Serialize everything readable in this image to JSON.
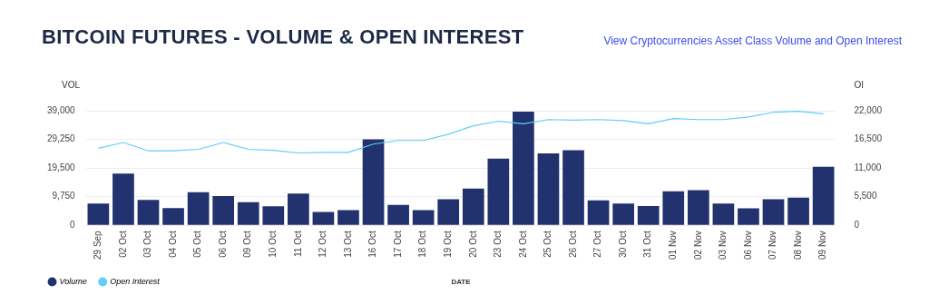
{
  "chart_data": {
    "type": "bar",
    "title": "BITCOIN FUTURES - VOLUME & OPEN INTEREST",
    "xlabel": "DATE",
    "ylabel": "VOL",
    "y2label": "OI",
    "annotations": [
      "View Cryptocurrencies Asset Class Volume and Open Interest"
    ],
    "categories": [
      "29 Sep",
      "02 Oct",
      "03 Oct",
      "04 Oct",
      "05 Oct",
      "06 Oct",
      "09 Oct",
      "10 Oct",
      "11 Oct",
      "12 Oct",
      "13 Oct",
      "16 Oct",
      "17 Oct",
      "18 Oct",
      "19 Oct",
      "20 Oct",
      "23 Oct",
      "24 Oct",
      "25 Oct",
      "26 Oct",
      "27 Oct",
      "30 Oct",
      "31 Oct",
      "01 Nov",
      "02 Nov",
      "03 Nov",
      "06 Nov",
      "07 Nov",
      "08 Nov",
      "09 Nov"
    ],
    "series": [
      {
        "name": "Volume",
        "color": "#22326e",
        "values": [
          7400,
          17600,
          8700,
          5900,
          11300,
          10000,
          7900,
          6500,
          10800,
          4600,
          5200,
          29300,
          7000,
          5200,
          8900,
          12500,
          22700,
          38700,
          24500,
          25600,
          8500,
          7400,
          6600,
          11600,
          12000,
          7400,
          5800,
          8900,
          9400,
          19900
        ]
      },
      {
        "name": "Open Interest",
        "type": "line",
        "axis": "y2",
        "color": "#62cdf7",
        "values": [
          14800,
          15900,
          14300,
          14300,
          14600,
          15900,
          14600,
          14400,
          13900,
          14000,
          14000,
          15600,
          16300,
          16300,
          17500,
          19100,
          20000,
          19500,
          20300,
          20200,
          20300,
          20100,
          19500,
          20500,
          20300,
          20300,
          20800,
          21700,
          21900,
          21400
        ]
      }
    ],
    "ylim": [
      0,
      39000
    ],
    "yticks": [
      {
        "value": 0,
        "label": "0"
      },
      {
        "value": 9750,
        "label": "9,750"
      },
      {
        "value": 19500,
        "label": "19,500"
      },
      {
        "value": 29250,
        "label": "29,250"
      },
      {
        "value": 39000,
        "label": "39,000"
      }
    ],
    "y2lim": [
      0,
      22000
    ],
    "y2ticks": [
      {
        "value": 0,
        "label": "0"
      },
      {
        "value": 5500,
        "label": "5,500"
      },
      {
        "value": 11000,
        "label": "11,000"
      },
      {
        "value": 16500,
        "label": "16,500"
      },
      {
        "value": 22000,
        "label": "22,000"
      }
    ],
    "grid": "y",
    "legend": "bottom left",
    "marker": "none",
    "line_style": "solid"
  }
}
